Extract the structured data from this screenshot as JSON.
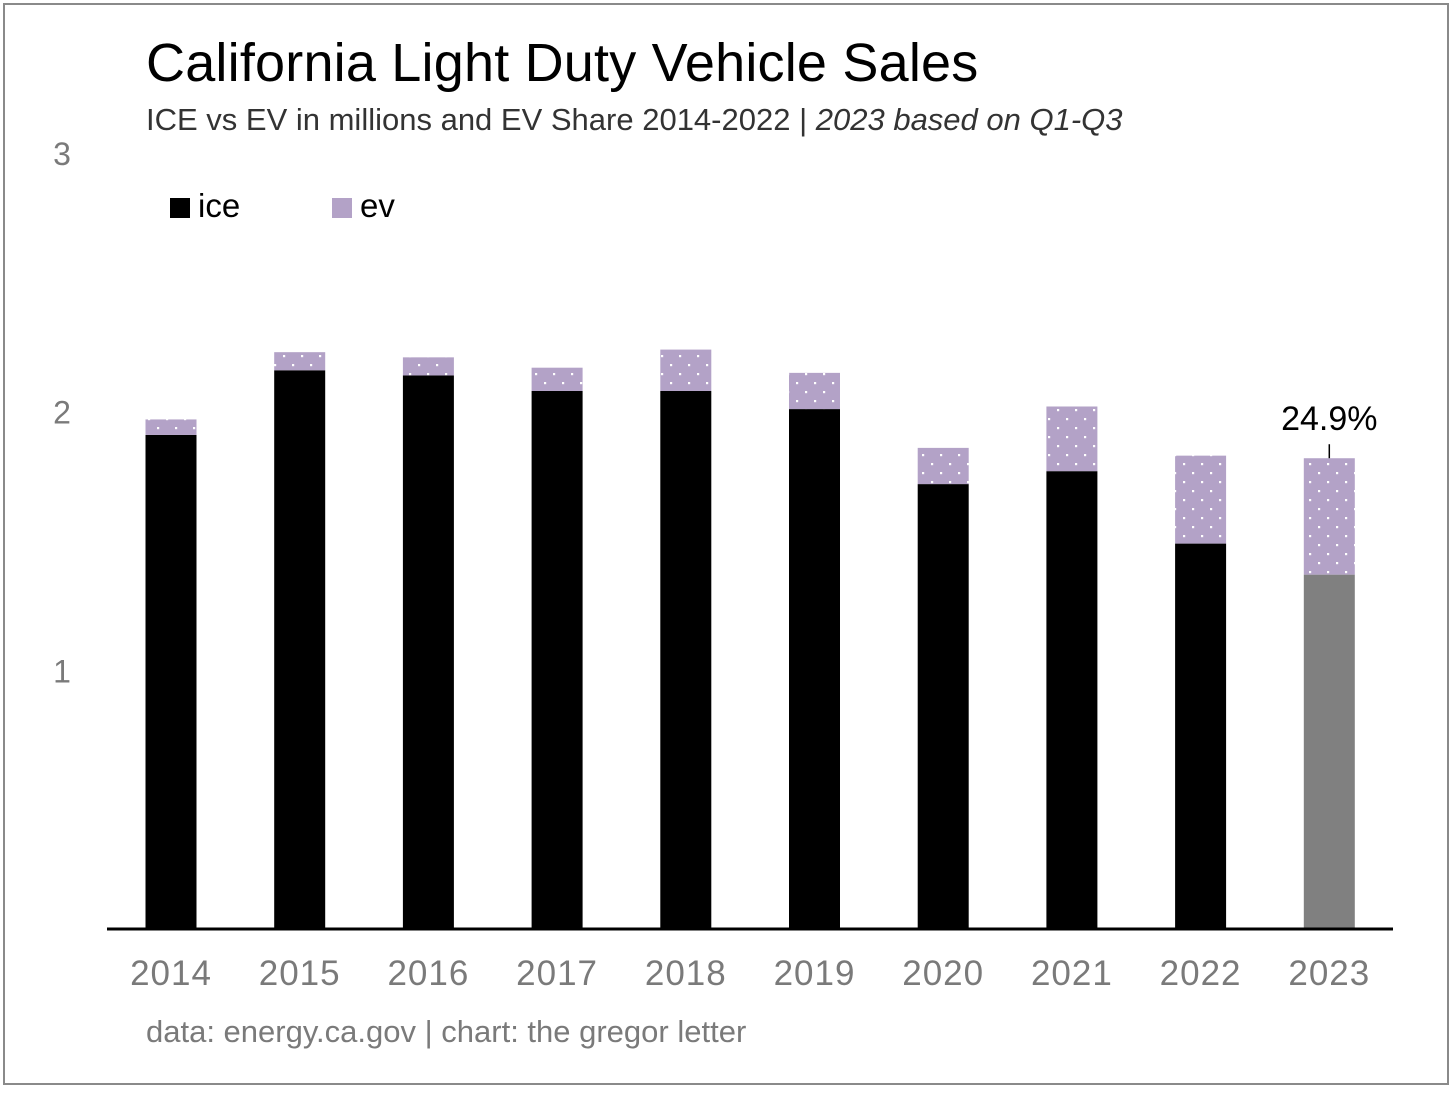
{
  "header": {
    "title": "California Light Duty Vehicle Sales",
    "subtitle_main": "ICE vs EV in millions and EV Share 2014-2022 | ",
    "subtitle_italic": "2023 based on Q1-Q3"
  },
  "footer": {
    "source": "data: energy.ca.gov | chart: the gregor letter"
  },
  "colors": {
    "ice": "#000000",
    "ev": "#b3a2c7",
    "ice_estimate": "#808080",
    "axis_text": "#7a7a7a"
  },
  "chart_data": {
    "type": "bar",
    "stacked": true,
    "categories": [
      "2014",
      "2015",
      "2016",
      "2017",
      "2018",
      "2019",
      "2020",
      "2021",
      "2022",
      "2023"
    ],
    "series": [
      {
        "name": "ice",
        "values": [
          1.91,
          2.16,
          2.14,
          2.08,
          2.08,
          2.01,
          1.72,
          1.77,
          1.49,
          1.37
        ]
      },
      {
        "name": "ev",
        "values": [
          0.06,
          0.07,
          0.07,
          0.09,
          0.16,
          0.14,
          0.14,
          0.25,
          0.34,
          0.45
        ]
      }
    ],
    "ylim": [
      0,
      3
    ],
    "yticks": [
      "1",
      "2",
      "3"
    ],
    "legend": [
      "ice",
      "ev"
    ],
    "legend_position": "top-left",
    "grid": false,
    "annotation": {
      "category": "2023",
      "text": "24.9%"
    }
  }
}
